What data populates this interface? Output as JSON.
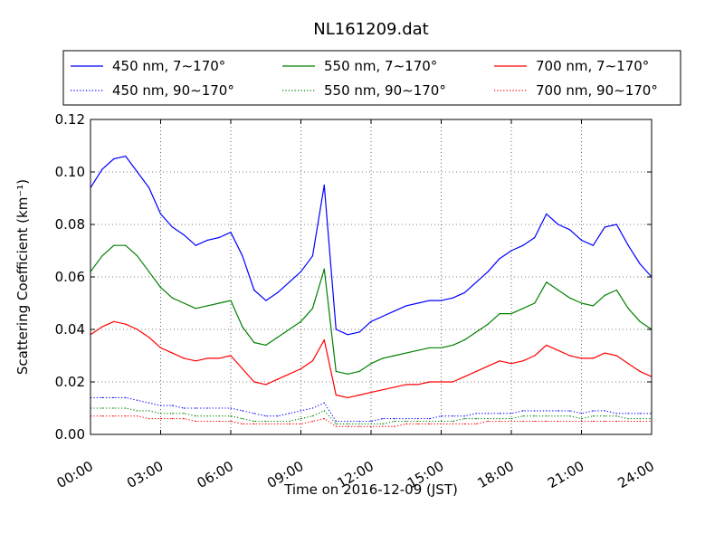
{
  "chart_data": {
    "type": "line",
    "title": "NL161209.dat",
    "xlabel": "Time on 2016-12-09 (JST)",
    "ylabel": "Scattering Coefficient (km⁻¹)",
    "xlim": [
      "00:00",
      "24:00"
    ],
    "ylim": [
      0,
      0.12
    ],
    "x_ticks": [
      "00:00",
      "03:00",
      "06:00",
      "09:00",
      "12:00",
      "15:00",
      "18:00",
      "21:00",
      "24:00"
    ],
    "y_ticks": [
      "0.00",
      "0.02",
      "0.04",
      "0.06",
      "0.08",
      "0.10",
      "0.12"
    ],
    "grid": true,
    "legend_position": "top",
    "x": [
      "00:00",
      "00:30",
      "01:00",
      "01:30",
      "02:00",
      "02:30",
      "03:00",
      "03:30",
      "04:00",
      "04:30",
      "05:00",
      "05:30",
      "06:00",
      "06:30",
      "07:00",
      "07:30",
      "08:00",
      "08:30",
      "09:00",
      "09:30",
      "10:00",
      "10:30",
      "11:00",
      "11:30",
      "12:00",
      "12:30",
      "13:00",
      "13:30",
      "14:00",
      "14:30",
      "15:00",
      "15:30",
      "16:00",
      "16:30",
      "17:00",
      "17:30",
      "18:00",
      "18:30",
      "19:00",
      "19:30",
      "20:00",
      "20:30",
      "21:00",
      "21:30",
      "22:00",
      "22:30",
      "23:00",
      "23:30",
      "24:00"
    ],
    "series": [
      {
        "name": "450 nm, 7∼170°",
        "color": "#0000ff",
        "style": "solid",
        "values": [
          0.094,
          0.101,
          0.105,
          0.106,
          0.1,
          0.094,
          0.084,
          0.079,
          0.076,
          0.072,
          0.074,
          0.075,
          0.077,
          0.068,
          0.055,
          0.051,
          0.054,
          0.058,
          0.062,
          0.068,
          0.095,
          0.04,
          0.038,
          0.039,
          0.043,
          0.045,
          0.047,
          0.049,
          0.05,
          0.051,
          0.051,
          0.052,
          0.054,
          0.058,
          0.062,
          0.067,
          0.07,
          0.072,
          0.075,
          0.084,
          0.08,
          0.078,
          0.074,
          0.072,
          0.079,
          0.08,
          0.072,
          0.065,
          0.06
        ]
      },
      {
        "name": "450 nm, 90∼170°",
        "color": "#0000ff",
        "style": "dotted",
        "values": [
          0.014,
          0.014,
          0.014,
          0.014,
          0.013,
          0.012,
          0.011,
          0.011,
          0.01,
          0.01,
          0.01,
          0.01,
          0.01,
          0.009,
          0.008,
          0.007,
          0.007,
          0.008,
          0.009,
          0.01,
          0.012,
          0.005,
          0.005,
          0.005,
          0.005,
          0.006,
          0.006,
          0.006,
          0.006,
          0.006,
          0.007,
          0.007,
          0.007,
          0.008,
          0.008,
          0.008,
          0.008,
          0.009,
          0.009,
          0.009,
          0.009,
          0.009,
          0.008,
          0.009,
          0.009,
          0.008,
          0.008,
          0.008,
          0.008
        ]
      },
      {
        "name": "550 nm, 7∼170°",
        "color": "#008000",
        "style": "solid",
        "values": [
          0.062,
          0.068,
          0.072,
          0.072,
          0.068,
          0.062,
          0.056,
          0.052,
          0.05,
          0.048,
          0.049,
          0.05,
          0.051,
          0.041,
          0.035,
          0.034,
          0.037,
          0.04,
          0.043,
          0.048,
          0.063,
          0.024,
          0.023,
          0.024,
          0.027,
          0.029,
          0.03,
          0.031,
          0.032,
          0.033,
          0.033,
          0.034,
          0.036,
          0.039,
          0.042,
          0.046,
          0.046,
          0.048,
          0.05,
          0.058,
          0.055,
          0.052,
          0.05,
          0.049,
          0.053,
          0.055,
          0.048,
          0.043,
          0.04
        ]
      },
      {
        "name": "550 nm, 90∼170°",
        "color": "#008000",
        "style": "dotted",
        "values": [
          0.01,
          0.01,
          0.01,
          0.01,
          0.009,
          0.009,
          0.008,
          0.008,
          0.008,
          0.007,
          0.007,
          0.007,
          0.007,
          0.006,
          0.005,
          0.005,
          0.005,
          0.005,
          0.006,
          0.007,
          0.009,
          0.004,
          0.004,
          0.004,
          0.004,
          0.004,
          0.005,
          0.005,
          0.005,
          0.005,
          0.005,
          0.005,
          0.006,
          0.006,
          0.006,
          0.006,
          0.006,
          0.007,
          0.007,
          0.007,
          0.007,
          0.007,
          0.006,
          0.007,
          0.007,
          0.007,
          0.006,
          0.006,
          0.006
        ]
      },
      {
        "name": "700 nm, 7∼170°",
        "color": "#ff0000",
        "style": "solid",
        "values": [
          0.038,
          0.041,
          0.043,
          0.042,
          0.04,
          0.037,
          0.033,
          0.031,
          0.029,
          0.028,
          0.029,
          0.029,
          0.03,
          0.025,
          0.02,
          0.019,
          0.021,
          0.023,
          0.025,
          0.028,
          0.036,
          0.015,
          0.014,
          0.015,
          0.016,
          0.017,
          0.018,
          0.019,
          0.019,
          0.02,
          0.02,
          0.02,
          0.022,
          0.024,
          0.026,
          0.028,
          0.027,
          0.028,
          0.03,
          0.034,
          0.032,
          0.03,
          0.029,
          0.029,
          0.031,
          0.03,
          0.027,
          0.024,
          0.022
        ]
      },
      {
        "name": "700 nm, 90∼170°",
        "color": "#ff0000",
        "style": "dotted",
        "values": [
          0.007,
          0.007,
          0.007,
          0.007,
          0.007,
          0.006,
          0.006,
          0.006,
          0.006,
          0.005,
          0.005,
          0.005,
          0.005,
          0.004,
          0.004,
          0.004,
          0.004,
          0.004,
          0.004,
          0.005,
          0.006,
          0.003,
          0.003,
          0.003,
          0.003,
          0.003,
          0.003,
          0.004,
          0.004,
          0.004,
          0.004,
          0.004,
          0.004,
          0.004,
          0.005,
          0.005,
          0.005,
          0.005,
          0.005,
          0.005,
          0.005,
          0.005,
          0.005,
          0.005,
          0.005,
          0.005,
          0.005,
          0.005,
          0.005
        ]
      }
    ]
  }
}
